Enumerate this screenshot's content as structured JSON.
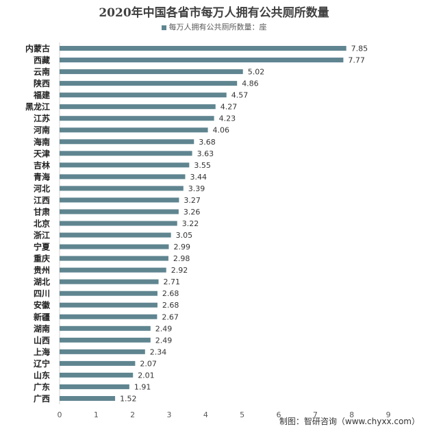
{
  "chart_data": {
    "type": "bar",
    "orientation": "horizontal",
    "title": "2020年中国各省市每万人拥有公共厕所数量",
    "legend": {
      "label": "每万人拥有公共厕所数量：座",
      "position": "top"
    },
    "categories": [
      "内蒙古",
      "西藏",
      "云南",
      "陕西",
      "福建",
      "黑龙江",
      "江苏",
      "河南",
      "海南",
      "天津",
      "吉林",
      "青海",
      "河北",
      "江西",
      "甘肃",
      "北京",
      "浙江",
      "宁夏",
      "重庆",
      "贵州",
      "湖北",
      "四川",
      "安徽",
      "新疆",
      "湖南",
      "山西",
      "上海",
      "辽宁",
      "山东",
      "广东",
      "广西"
    ],
    "values": [
      7.85,
      7.77,
      5.02,
      4.86,
      4.57,
      4.27,
      4.23,
      4.06,
      3.68,
      3.63,
      3.55,
      3.44,
      3.39,
      3.27,
      3.26,
      3.22,
      3.05,
      2.99,
      2.98,
      2.92,
      2.71,
      2.68,
      2.68,
      2.67,
      2.49,
      2.49,
      2.34,
      2.07,
      2.01,
      1.91,
      1.52
    ],
    "data_labels": [
      "7.85",
      "7.77",
      "5.02",
      "4.86",
      "4.57",
      "4.27",
      "4.23",
      "4.06",
      "3.68",
      "3.63",
      "3.55",
      "3.44",
      "3.39",
      "3.27",
      "3.26",
      "3.22",
      "3.05",
      "2.99",
      "2.98",
      "2.92",
      "2.71",
      "2.68",
      "2.68",
      "2.67",
      "2.49",
      "2.49",
      "2.34",
      "2.07",
      "2.01",
      "1.91",
      "1.52"
    ],
    "xlim": [
      0,
      9
    ],
    "xticks": [
      "0",
      "1",
      "2",
      "3",
      "4",
      "5",
      "6",
      "7",
      "8",
      "9"
    ],
    "grid": false,
    "bar_color": "#5f8590"
  },
  "source": "制图：智研咨询（www.chyxx.com）"
}
